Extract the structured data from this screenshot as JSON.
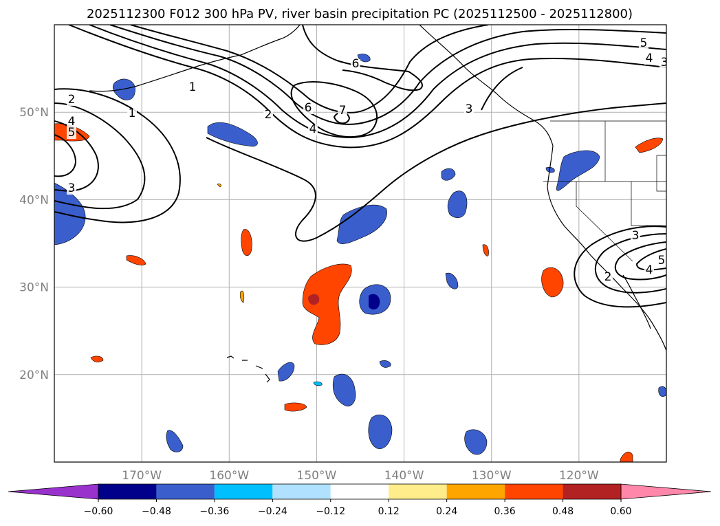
{
  "title": "2025112300 F012 300 hPa PV, river basin precipitation PC (2025112500 - 2025112800)",
  "map": {
    "lon_range": [
      -180,
      -110
    ],
    "lat_range": [
      10,
      60
    ],
    "lat_ticks": [
      {
        "value": 50,
        "label": "50°N"
      },
      {
        "value": 40,
        "label": "40°N"
      },
      {
        "value": 30,
        "label": "30°N"
      },
      {
        "value": 20,
        "label": "20°N"
      }
    ],
    "lon_ticks": [
      {
        "value": -170,
        "label": "170°W"
      },
      {
        "value": -160,
        "label": "160°W"
      },
      {
        "value": -150,
        "label": "150°W"
      },
      {
        "value": -140,
        "label": "140°W"
      },
      {
        "value": -130,
        "label": "130°W"
      },
      {
        "value": -120,
        "label": "120°W"
      }
    ],
    "grid": true
  },
  "pv_contour_labels": [
    "1",
    "1",
    "2",
    "2",
    "3",
    "3",
    "3",
    "4",
    "4",
    "4",
    "5",
    "5",
    "6",
    "6",
    "7",
    "2",
    "4",
    "5",
    "3"
  ],
  "colorbar": {
    "ticks": [
      "−0.60",
      "−0.48",
      "−0.36",
      "−0.24",
      "−0.12",
      "0.12",
      "0.24",
      "0.36",
      "0.48",
      "0.60"
    ],
    "colors": [
      "#9932CC",
      "#00008B",
      "#3A5FCD",
      "#00BFFF",
      "#B0E2FF",
      "#FFFFFF",
      "#FFEC8B",
      "#FFA500",
      "#FF4500",
      "#B22222",
      "#FF88AA"
    ]
  }
}
